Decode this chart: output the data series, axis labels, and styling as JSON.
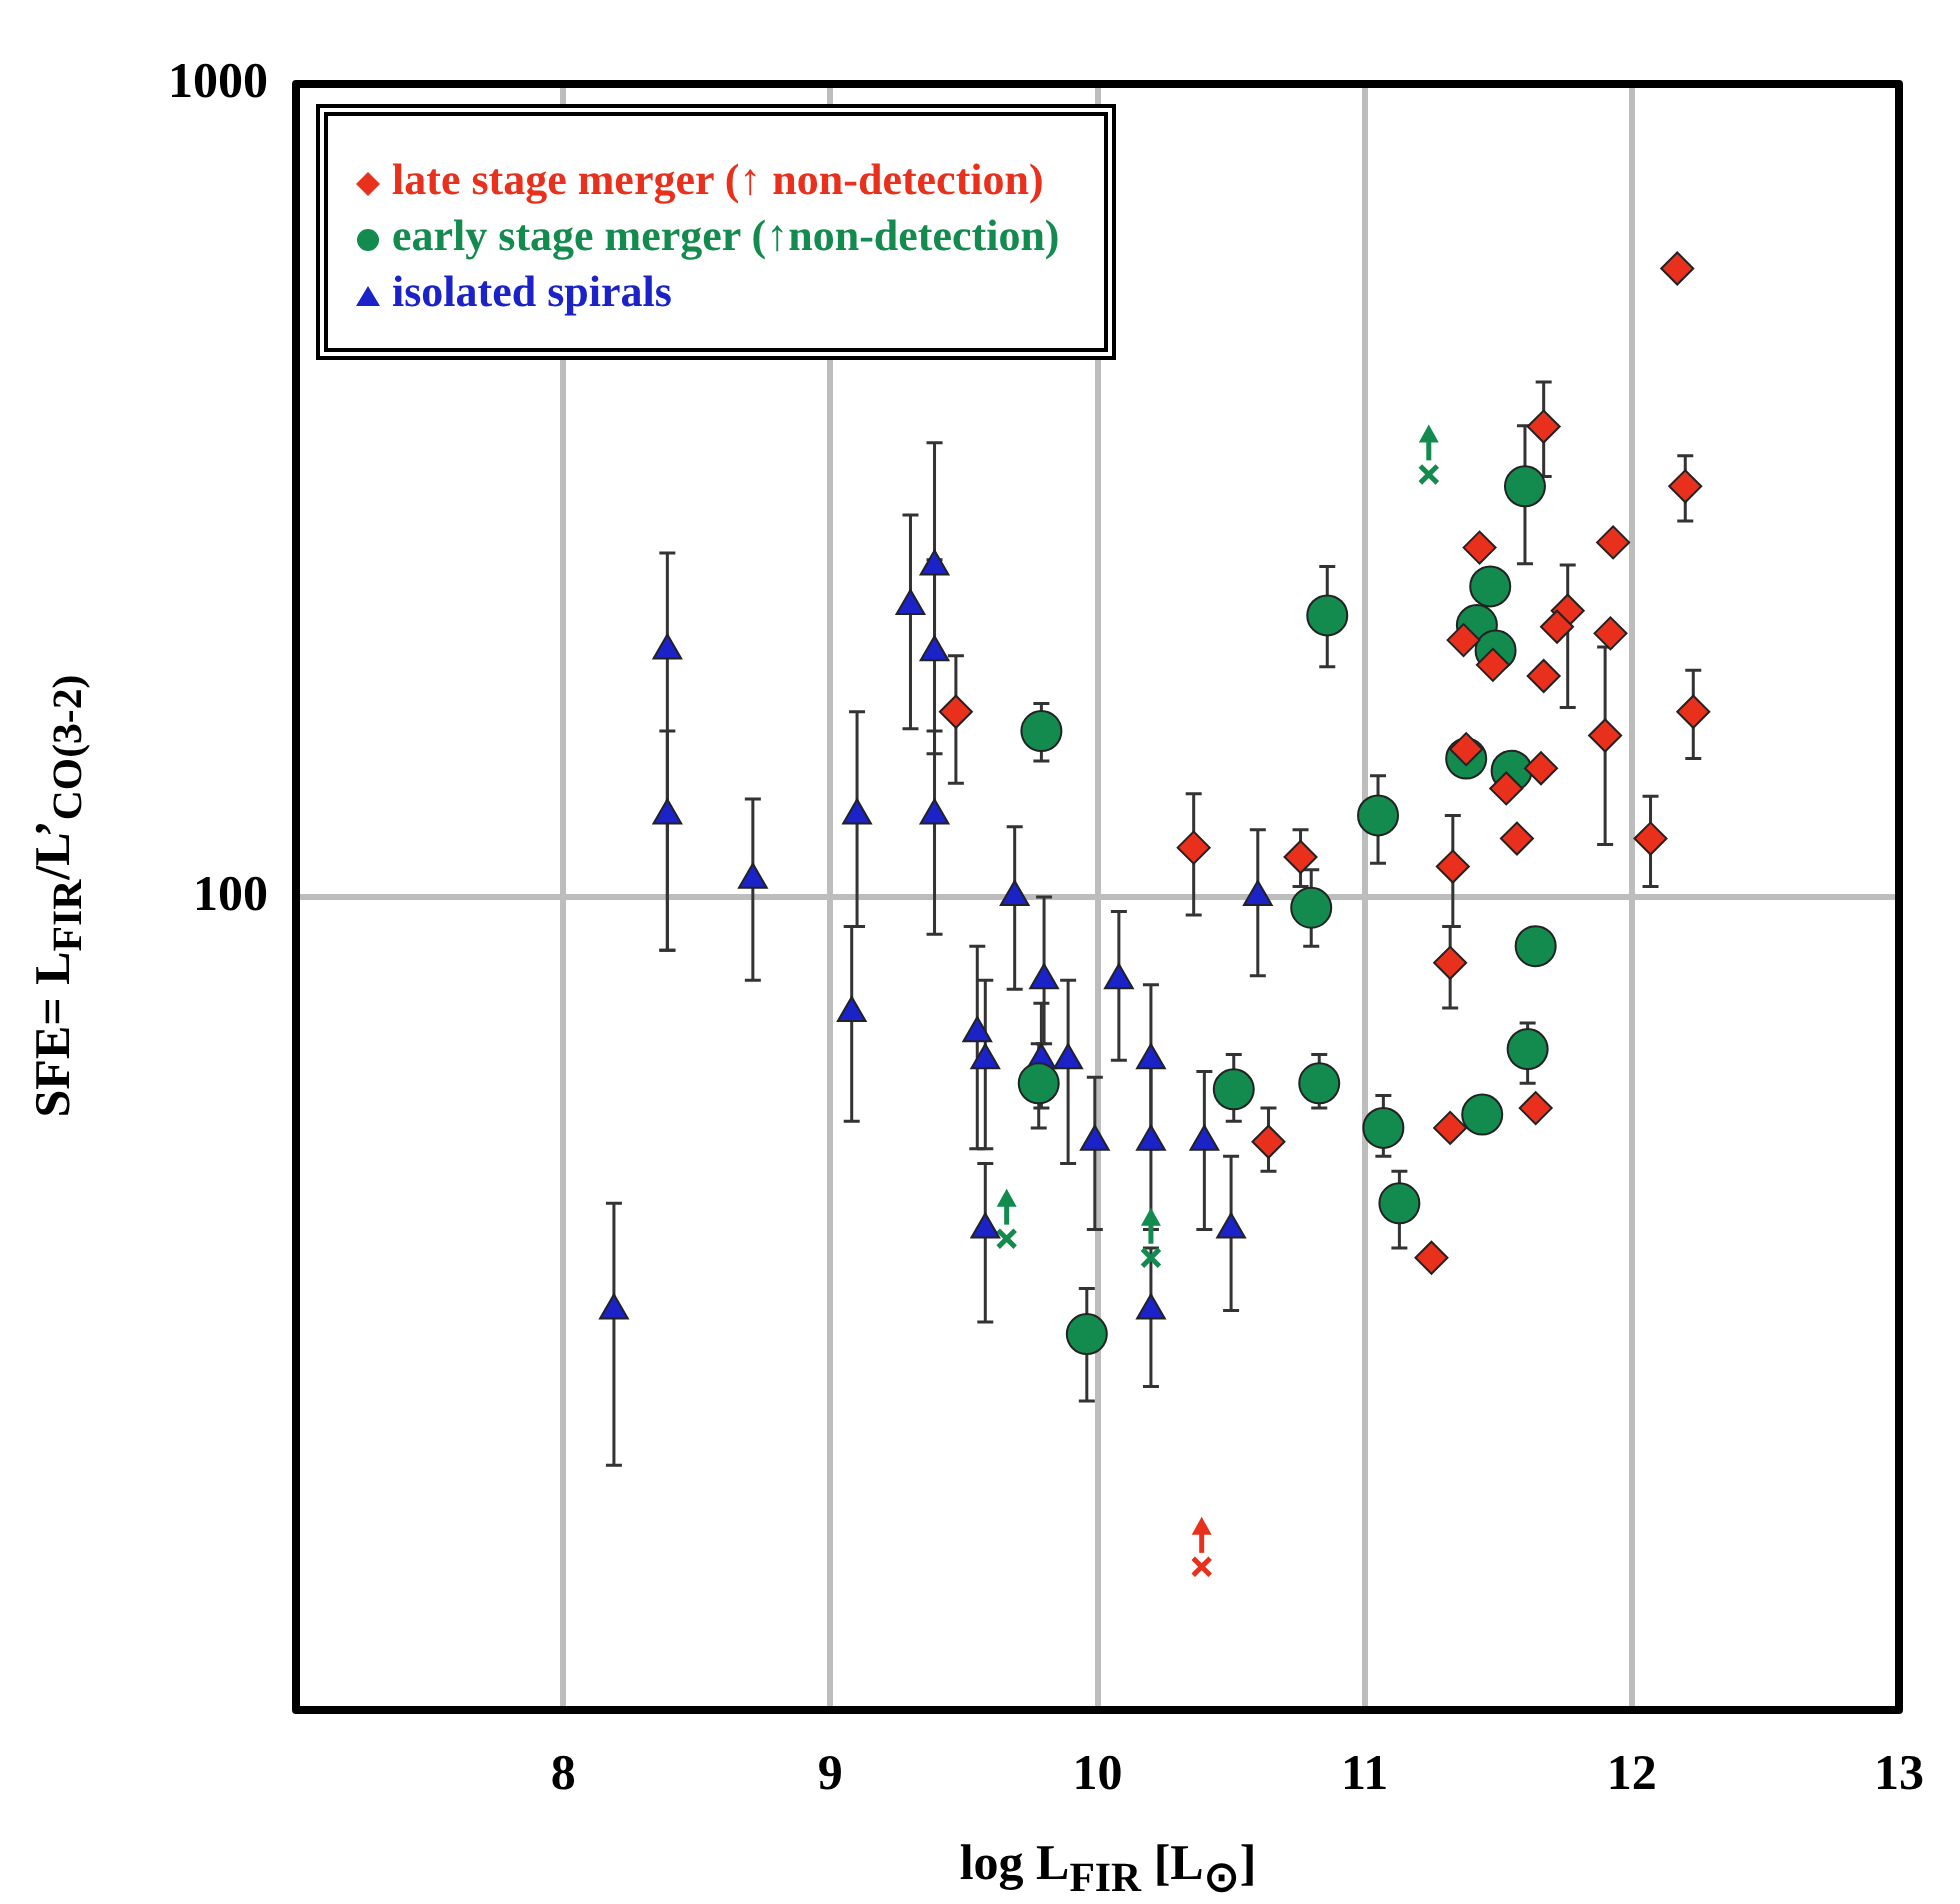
{
  "chart_data": {
    "type": "scatter",
    "xlabel": "log L$_{FIR}$ [L$_{⊙}$]",
    "ylabel": "SFE= L$_{FIR}$/L’$_{CO(3-2)}$",
    "xlim": [
      7,
      13
    ],
    "xticks": [
      8,
      9,
      10,
      11,
      12,
      13
    ],
    "ylim": [
      10,
      1000
    ],
    "yticks": [
      100,
      1000
    ],
    "log": "y",
    "grid": true,
    "legend": "top left",
    "series": [
      {
        "name": "late stage merger  (↑ non-detection)",
        "color": "#e8301c",
        "marker": "diamond",
        "x": [
          9.47,
          12.17,
          11.67,
          12.2,
          11.43,
          11.93,
          11.76,
          11.72,
          11.92,
          11.37,
          11.48,
          11.67,
          12.23,
          11.9,
          11.38,
          11.66,
          11.53,
          11.57,
          12.07,
          11.33,
          10.36,
          10.76,
          11.32,
          10.64,
          11.32,
          11.64,
          11.25
        ],
        "values": [
          169,
          593,
          379,
          320,
          269,
          273,
          225,
          215,
          211,
          207,
          193,
          187,
          169,
          158,
          152,
          144,
          136,
          118,
          118,
          109,
          115,
          112,
          83,
          50,
          52,
          55,
          36
        ],
        "errors": [
          [
            138,
            198
          ],
          null,
          [
            329,
            430
          ],
          [
            290,
            349
          ],
          null,
          null,
          [
            171,
            256
          ],
          null,
          null,
          null,
          null,
          null,
          [
            148,
            190
          ],
          [
            116,
            203
          ],
          null,
          null,
          null,
          null,
          [
            103,
            133
          ],
          [
            92,
            126
          ],
          [
            95,
            134
          ],
          [
            103,
            121
          ],
          [
            73,
            92
          ],
          [
            46,
            55
          ],
          null,
          null,
          null
        ]
      },
      {
        "name": "early stage merger (↑non-detection)",
        "color": "#138a4e",
        "marker": "circle",
        "x": [
          9.79,
          9.78,
          9.96,
          10.8,
          10.51,
          10.83,
          11.07,
          11.13,
          11.44,
          11.61,
          11.64,
          10.86,
          11.05,
          11.6,
          11.47,
          11.42,
          11.49,
          11.38,
          11.55
        ],
        "values": [
          160,
          59,
          29,
          97,
          58,
          59,
          52,
          42,
          54,
          65,
          87,
          222,
          126,
          320,
          241,
          216,
          201,
          148,
          143
        ],
        "errors": [
          [
            147,
            173
          ],
          [
            52,
            66
          ],
          [
            24,
            33
          ],
          [
            87,
            108
          ],
          [
            53,
            64
          ],
          [
            55,
            64
          ],
          [
            48,
            57
          ],
          [
            37,
            46
          ],
          null,
          [
            59,
            70
          ],
          null,
          [
            192,
            255
          ],
          [
            110,
            141
          ],
          [
            257,
            380
          ],
          null,
          null,
          null,
          null,
          null
        ]
      },
      {
        "name": "isolated spirals",
        "color": "#1a22c8",
        "marker": "triangle",
        "x": [
          8.39,
          8.39,
          8.71,
          9.1,
          9.08,
          9.3,
          9.39,
          9.39,
          9.39,
          9.69,
          9.8,
          10.08,
          9.55,
          9.58,
          9.79,
          9.89,
          9.99,
          9.58,
          8.19,
          10.2,
          10.2,
          10.4,
          10.5,
          10.6,
          10.2
        ],
        "values": [
          201,
          126,
          105,
          126,
          72,
          228,
          255,
          200,
          126,
          100,
          79,
          79,
          68,
          63,
          63,
          63,
          50,
          39,
          31,
          63,
          50,
          50,
          39,
          100,
          31
        ],
        "errors": [
          [
            86,
            265
          ],
          [
            86,
            160
          ],
          [
            79,
            132
          ],
          [
            92,
            169
          ],
          [
            53,
            92
          ],
          [
            161,
            295
          ],
          [
            200,
            362
          ],
          [
            150,
            260
          ],
          [
            90,
            160
          ],
          [
            77,
            122
          ],
          [
            66,
            100
          ],
          [
            63,
            96
          ],
          [
            49,
            87
          ],
          [
            49,
            79
          ],
          [
            55,
            74
          ],
          [
            47,
            79
          ],
          [
            39,
            60
          ],
          [
            30,
            47
          ],
          [
            20,
            42
          ],
          [
            49,
            78
          ],
          [
            39,
            63
          ],
          [
            39,
            61
          ],
          [
            31,
            48
          ],
          [
            80,
            121
          ],
          [
            25,
            37
          ]
        ]
      },
      {
        "color": "#138a4e",
        "marker": "cross",
        "x": [
          11.24,
          9.66,
          10.2
        ],
        "values": [
          331,
          38,
          36
        ]
      },
      {
        "color": "#e8301c",
        "marker": "cross",
        "x": [
          10.39
        ],
        "values": [
          15
        ]
      }
    ]
  }
}
